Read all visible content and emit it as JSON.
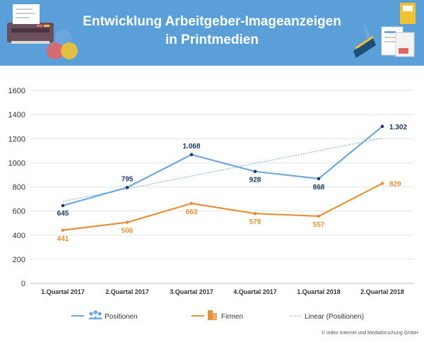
{
  "header": {
    "title_line1": "Entwicklung Arbeitgeber-Imageanzeigen",
    "title_line2": "in Printmedien",
    "background_color": "#5b9fd9"
  },
  "footer": {
    "copyright": "© index Internet und Mediaforschung GmbH"
  },
  "icons": {
    "left": "printer-with-color-circles-icon",
    "right": "documents-and-magazines-icon",
    "legend_positionen": "people-group-icon",
    "legend_firmen": "building-icon"
  },
  "chart_data": {
    "type": "line",
    "title": "Entwicklung Arbeitgeber-Imageanzeigen in Printmedien",
    "xlabel": "",
    "ylabel": "",
    "categories": [
      "1.Quartal 2017",
      "2.Quartal 2017",
      "3.Quartal 2017",
      "4.Quartal 2017",
      "1.Quartal 2018",
      "2.Quartal 2018"
    ],
    "ylim": [
      0,
      1600
    ],
    "yticks": [
      0,
      200,
      400,
      600,
      800,
      1000,
      1200,
      1400,
      1600
    ],
    "grid": true,
    "legend_position": "bottom",
    "series": [
      {
        "name": "Positionen",
        "values": [
          645,
          795,
          1068,
          928,
          868,
          1302
        ],
        "labels": [
          "645",
          "795",
          "1.068",
          "928",
          "868",
          "1.302"
        ],
        "color": "#6fa8dc",
        "label_color": "#1f3864",
        "marker_color": "#1f3864"
      },
      {
        "name": "Firmen",
        "values": [
          441,
          506,
          663,
          579,
          557,
          829
        ],
        "labels": [
          "441",
          "506",
          "663",
          "579",
          "557",
          "829"
        ],
        "color": "#e69138",
        "label_color": "#e69138",
        "marker_color": "#e69138"
      },
      {
        "name": "Linear (Positionen)",
        "type": "trendline",
        "values": [
          680,
          785,
          890,
          995,
          1100,
          1205
        ],
        "color": "#6fa8dc",
        "style": "dotted"
      }
    ]
  }
}
